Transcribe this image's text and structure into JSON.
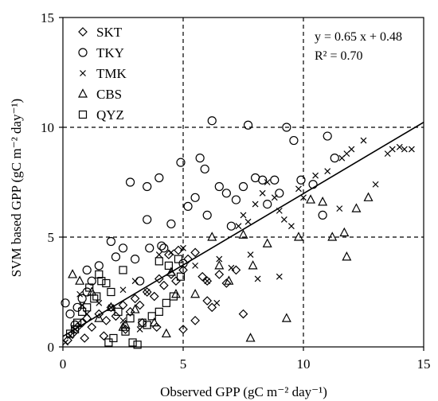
{
  "chart_data": {
    "type": "scatter",
    "xlabel": "Observed GPP (gC m⁻² day⁻¹)",
    "ylabel": "SVM based GPP (gC m⁻² day⁻¹)",
    "xlim": [
      0,
      15
    ],
    "ylim": [
      0,
      15
    ],
    "xticks": [
      "0",
      "5",
      "10",
      "15"
    ],
    "yticks": [
      "0",
      "5",
      "10",
      "15"
    ],
    "grid": "dashed lines at 5 and 10 on both axes",
    "legend_position": "top-left",
    "regression": {
      "equation": "y = 0.65 x + 0.48",
      "r2": "R² = 0.70",
      "slope": 0.65,
      "intercept": 0.48
    },
    "series": [
      {
        "name": "SKT",
        "marker": "diamond",
        "points": [
          [
            0.2,
            0.3
          ],
          [
            0.4,
            0.6
          ],
          [
            0.6,
            0.9
          ],
          [
            0.8,
            1.1
          ],
          [
            1.0,
            1.3
          ],
          [
            1.2,
            0.9
          ],
          [
            1.5,
            1.5
          ],
          [
            1.8,
            1.2
          ],
          [
            2.0,
            1.8
          ],
          [
            2.2,
            1.4
          ],
          [
            2.5,
            1.9
          ],
          [
            2.8,
            1.6
          ],
          [
            3.0,
            2.2
          ],
          [
            3.2,
            1.9
          ],
          [
            3.5,
            2.5
          ],
          [
            3.8,
            2.3
          ],
          [
            4.0,
            3.1
          ],
          [
            4.2,
            2.8
          ],
          [
            4.5,
            3.3
          ],
          [
            4.7,
            3.0
          ],
          [
            5.0,
            3.5
          ],
          [
            5.2,
            4.0
          ],
          [
            5.5,
            4.3
          ],
          [
            5.8,
            3.2
          ],
          [
            6.0,
            2.1
          ],
          [
            6.2,
            1.8
          ],
          [
            6.5,
            3.3
          ],
          [
            6.8,
            2.9
          ],
          [
            7.2,
            3.5
          ],
          [
            7.5,
            1.5
          ],
          [
            4.8,
            4.4
          ],
          [
            4.4,
            4.2
          ],
          [
            3.9,
            0.9
          ],
          [
            3.3,
            1.1
          ],
          [
            2.6,
            0.8
          ],
          [
            5.0,
            0.8
          ],
          [
            1.7,
            0.5
          ],
          [
            0.9,
            0.4
          ],
          [
            5.5,
            1.2
          ],
          [
            6.0,
            3.0
          ]
        ]
      },
      {
        "name": "TKY",
        "marker": "circle",
        "points": [
          [
            0.1,
            2.0
          ],
          [
            0.3,
            1.5
          ],
          [
            0.5,
            1.0
          ],
          [
            0.8,
            2.2
          ],
          [
            1.0,
            3.5
          ],
          [
            1.2,
            3.0
          ],
          [
            1.5,
            3.7
          ],
          [
            2.0,
            4.8
          ],
          [
            2.5,
            4.5
          ],
          [
            2.8,
            7.5
          ],
          [
            3.0,
            4.0
          ],
          [
            3.2,
            3.0
          ],
          [
            3.5,
            7.3
          ],
          [
            3.5,
            5.8
          ],
          [
            4.0,
            7.7
          ],
          [
            4.2,
            4.5
          ],
          [
            4.5,
            5.6
          ],
          [
            5.0,
            3.8
          ],
          [
            5.2,
            6.4
          ],
          [
            5.5,
            6.8
          ],
          [
            5.7,
            8.6
          ],
          [
            5.9,
            8.1
          ],
          [
            6.2,
            10.3
          ],
          [
            6.5,
            7.3
          ],
          [
            6.8,
            7.0
          ],
          [
            7.2,
            6.7
          ],
          [
            7.5,
            7.3
          ],
          [
            7.7,
            10.1
          ],
          [
            8.0,
            7.7
          ],
          [
            8.3,
            7.6
          ],
          [
            8.5,
            6.5
          ],
          [
            8.8,
            7.6
          ],
          [
            9.0,
            7.0
          ],
          [
            9.3,
            10.0
          ],
          [
            9.6,
            9.4
          ],
          [
            9.9,
            7.6
          ],
          [
            10.4,
            7.4
          ],
          [
            10.8,
            6.0
          ],
          [
            11.0,
            9.6
          ],
          [
            11.3,
            8.6
          ],
          [
            4.9,
            8.4
          ],
          [
            4.1,
            4.6
          ],
          [
            2.2,
            4.1
          ],
          [
            1.0,
            2.5
          ],
          [
            0.6,
            1.8
          ],
          [
            3.6,
            4.5
          ],
          [
            6.0,
            6.0
          ],
          [
            7.0,
            5.5
          ]
        ]
      },
      {
        "name": "TMK",
        "marker": "x",
        "points": [
          [
            0.1,
            0.2
          ],
          [
            0.3,
            0.5
          ],
          [
            0.5,
            0.8
          ],
          [
            1.0,
            1.5
          ],
          [
            1.5,
            2.0
          ],
          [
            2.0,
            1.8
          ],
          [
            2.5,
            2.6
          ],
          [
            3.0,
            3.0
          ],
          [
            3.5,
            2.5
          ],
          [
            4.0,
            4.2
          ],
          [
            4.5,
            4.3
          ],
          [
            5.0,
            4.5
          ],
          [
            5.5,
            3.7
          ],
          [
            6.0,
            3.0
          ],
          [
            6.5,
            4.0
          ],
          [
            7.0,
            3.6
          ],
          [
            7.3,
            5.5
          ],
          [
            7.5,
            6.0
          ],
          [
            7.7,
            5.7
          ],
          [
            8.0,
            6.5
          ],
          [
            8.3,
            7.0
          ],
          [
            8.5,
            7.5
          ],
          [
            8.8,
            6.8
          ],
          [
            9.0,
            6.2
          ],
          [
            9.2,
            5.8
          ],
          [
            9.5,
            5.5
          ],
          [
            9.8,
            7.2
          ],
          [
            10.0,
            6.8
          ],
          [
            10.5,
            7.8
          ],
          [
            11.0,
            8.0
          ],
          [
            11.5,
            6.3
          ],
          [
            11.8,
            8.8
          ],
          [
            12.0,
            9.0
          ],
          [
            12.5,
            9.4
          ],
          [
            13.0,
            7.4
          ],
          [
            13.5,
            8.8
          ],
          [
            13.7,
            9.0
          ],
          [
            14.0,
            9.1
          ],
          [
            14.2,
            9.0
          ],
          [
            14.5,
            9.0
          ],
          [
            0.7,
            2.4
          ],
          [
            0.8,
            1.9
          ],
          [
            2.5,
            1.2
          ],
          [
            3.2,
            0.8
          ],
          [
            6.4,
            2.0
          ],
          [
            7.8,
            4.2
          ],
          [
            8.1,
            3.1
          ],
          [
            9.0,
            3.2
          ],
          [
            11.6,
            8.6
          ]
        ]
      },
      {
        "name": "CBS",
        "marker": "triangle",
        "points": [
          [
            0.4,
            3.3
          ],
          [
            0.7,
            3.0
          ],
          [
            1.2,
            2.5
          ],
          [
            2.0,
            1.8
          ],
          [
            2.6,
            1.0
          ],
          [
            3.0,
            1.7
          ],
          [
            3.8,
            1.1
          ],
          [
            4.3,
            0.6
          ],
          [
            5.5,
            2.4
          ],
          [
            6.2,
            5.0
          ],
          [
            6.5,
            3.7
          ],
          [
            6.9,
            3.0
          ],
          [
            7.5,
            5.1
          ],
          [
            7.9,
            3.7
          ],
          [
            8.5,
            4.7
          ],
          [
            9.3,
            1.3
          ],
          [
            9.8,
            5.0
          ],
          [
            10.3,
            6.7
          ],
          [
            10.8,
            6.6
          ],
          [
            11.2,
            5.0
          ],
          [
            11.7,
            5.2
          ],
          [
            11.8,
            4.1
          ],
          [
            12.2,
            6.3
          ],
          [
            12.7,
            6.8
          ],
          [
            7.8,
            0.4
          ],
          [
            4.7,
            2.4
          ],
          [
            4.5,
            3.4
          ],
          [
            2.5,
            0.9
          ],
          [
            1.5,
            1.3
          ]
        ]
      },
      {
        "name": "QYZ",
        "marker": "square",
        "points": [
          [
            0.3,
            0.6
          ],
          [
            0.6,
            1.1
          ],
          [
            1.0,
            1.8
          ],
          [
            1.3,
            2.2
          ],
          [
            1.6,
            3.0
          ],
          [
            2.0,
            2.5
          ],
          [
            2.3,
            1.6
          ],
          [
            2.6,
            0.7
          ],
          [
            2.9,
            0.2
          ],
          [
            3.1,
            0.1
          ],
          [
            3.5,
            1.0
          ],
          [
            4.0,
            1.6
          ],
          [
            4.3,
            2.0
          ],
          [
            4.6,
            2.3
          ],
          [
            4.0,
            3.9
          ],
          [
            4.4,
            3.7
          ],
          [
            4.8,
            4.0
          ],
          [
            2.5,
            3.5
          ],
          [
            1.8,
            2.9
          ],
          [
            1.5,
            3.3
          ],
          [
            1.1,
            2.7
          ],
          [
            0.8,
            1.6
          ],
          [
            0.5,
            0.8
          ],
          [
            3.3,
            1.1
          ],
          [
            2.1,
            0.4
          ],
          [
            1.9,
            0.2
          ],
          [
            3.7,
            1.4
          ],
          [
            4.9,
            3.2
          ],
          [
            2.8,
            1.3
          ],
          [
            1.4,
            2.3
          ]
        ]
      }
    ]
  }
}
